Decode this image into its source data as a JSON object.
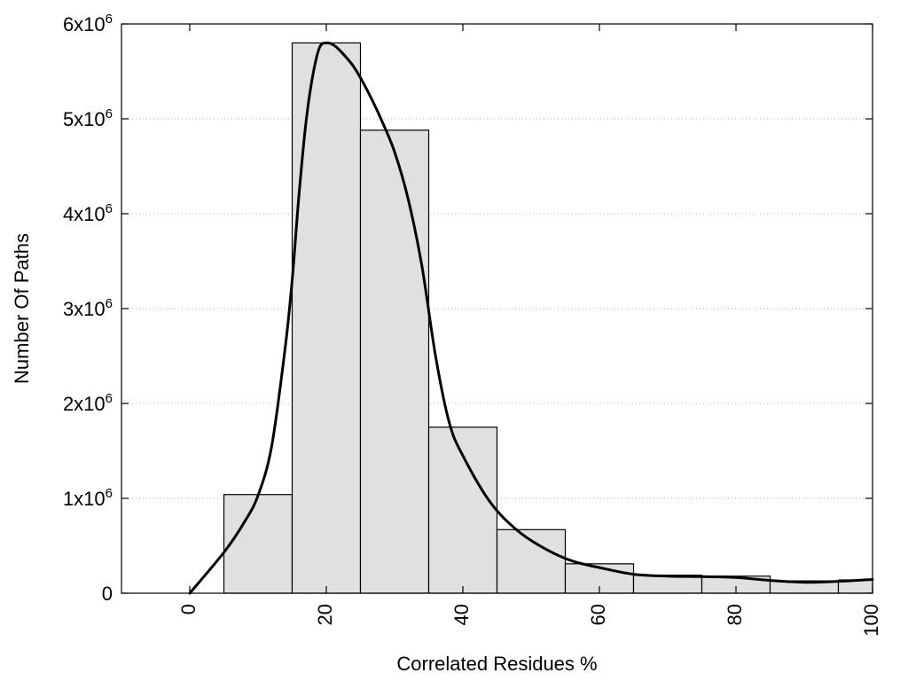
{
  "chart_data": {
    "type": "bar",
    "xlabel": "Correlated Residues %",
    "ylabel": "Number Of Paths",
    "xlim": [
      -10,
      100
    ],
    "ylim": [
      0,
      6000000
    ],
    "grid": "horizontal dotted",
    "x_ticks": [
      0,
      20,
      40,
      60,
      80,
      100
    ],
    "x_tick_labels": [
      "0",
      "20",
      "40",
      "60",
      "80",
      "100"
    ],
    "y_ticks": [
      {
        "value": 0,
        "base": "0",
        "exp": ""
      },
      {
        "value": 1000000,
        "base": "1x10",
        "exp": "6"
      },
      {
        "value": 2000000,
        "base": "2x10",
        "exp": "6"
      },
      {
        "value": 3000000,
        "base": "3x10",
        "exp": "6"
      },
      {
        "value": 4000000,
        "base": "4x10",
        "exp": "6"
      },
      {
        "value": 5000000,
        "base": "5x10",
        "exp": "6"
      },
      {
        "value": 6000000,
        "base": "6x10",
        "exp": "6"
      }
    ],
    "bins": [
      {
        "x0": 5,
        "x1": 15,
        "value": 1040000
      },
      {
        "x0": 15,
        "x1": 25,
        "value": 5800000
      },
      {
        "x0": 25,
        "x1": 35,
        "value": 4880000
      },
      {
        "x0": 35,
        "x1": 45,
        "value": 1750000
      },
      {
        "x0": 45,
        "x1": 55,
        "value": 670000
      },
      {
        "x0": 55,
        "x1": 65,
        "value": 310000
      },
      {
        "x0": 65,
        "x1": 75,
        "value": 190000
      },
      {
        "x0": 75,
        "x1": 85,
        "value": 180000
      },
      {
        "x0": 85,
        "x1": 95,
        "value": 130000
      },
      {
        "x0": 95,
        "x1": 100,
        "value": 140000
      }
    ],
    "smooth_curve": {
      "x": [
        0,
        5,
        8,
        10,
        12,
        14,
        15,
        16,
        17,
        18,
        19,
        20,
        21,
        22,
        24,
        26,
        28,
        30,
        32,
        34,
        36,
        38,
        40,
        44,
        48,
        52,
        56,
        60,
        65,
        70,
        75,
        80,
        85,
        90,
        95,
        100
      ],
      "y": [
        0,
        430000,
        750000,
        1030000,
        1550000,
        2600000,
        3300000,
        4200000,
        4950000,
        5450000,
        5750000,
        5800000,
        5780000,
        5720000,
        5550000,
        5300000,
        5000000,
        4650000,
        4150000,
        3450000,
        2500000,
        1800000,
        1450000,
        960000,
        660000,
        470000,
        340000,
        270000,
        200000,
        180000,
        175000,
        165000,
        135000,
        115000,
        125000,
        145000
      ]
    }
  }
}
